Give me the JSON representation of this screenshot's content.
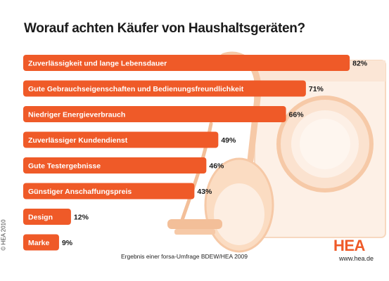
{
  "title": "Worauf achten Käufer von Haushaltsgeräten?",
  "chart_data": {
    "type": "bar",
    "orientation": "horizontal",
    "title": "Worauf achten Käufer von Haushaltsgeräten?",
    "categories": [
      "Zuverlässigkeit und lange Lebensdauer",
      "Gute Gebrauchseigenschaften und Bedienungsfreundlichkeit",
      "Niedriger Energieverbrauch",
      "Zuverlässiger Kundendienst",
      "Gute Testergebnisse",
      "Günstiger Anschaffungspreis",
      "Design",
      "Marke"
    ],
    "values": [
      82,
      71,
      66,
      49,
      46,
      43,
      12,
      9
    ],
    "value_labels": [
      "82%",
      "71%",
      "66%",
      "49%",
      "46%",
      "43%",
      "12%",
      "9%"
    ],
    "unit": "%",
    "xlim": [
      0,
      100
    ],
    "grid": false,
    "legend": "none",
    "bar_color": "#ef5a28"
  },
  "copyright": "© HEA 2010",
  "source_note": "Ergebnis einer forsa-Umfrage BDEW/HEA 2009",
  "logo_text": "HEA",
  "website": "www.hea.de",
  "colors": {
    "bar": "#ef5a28",
    "art": "#fbe2cf",
    "art_dark": "#f6c9a7",
    "title": "#1a1a1a"
  }
}
